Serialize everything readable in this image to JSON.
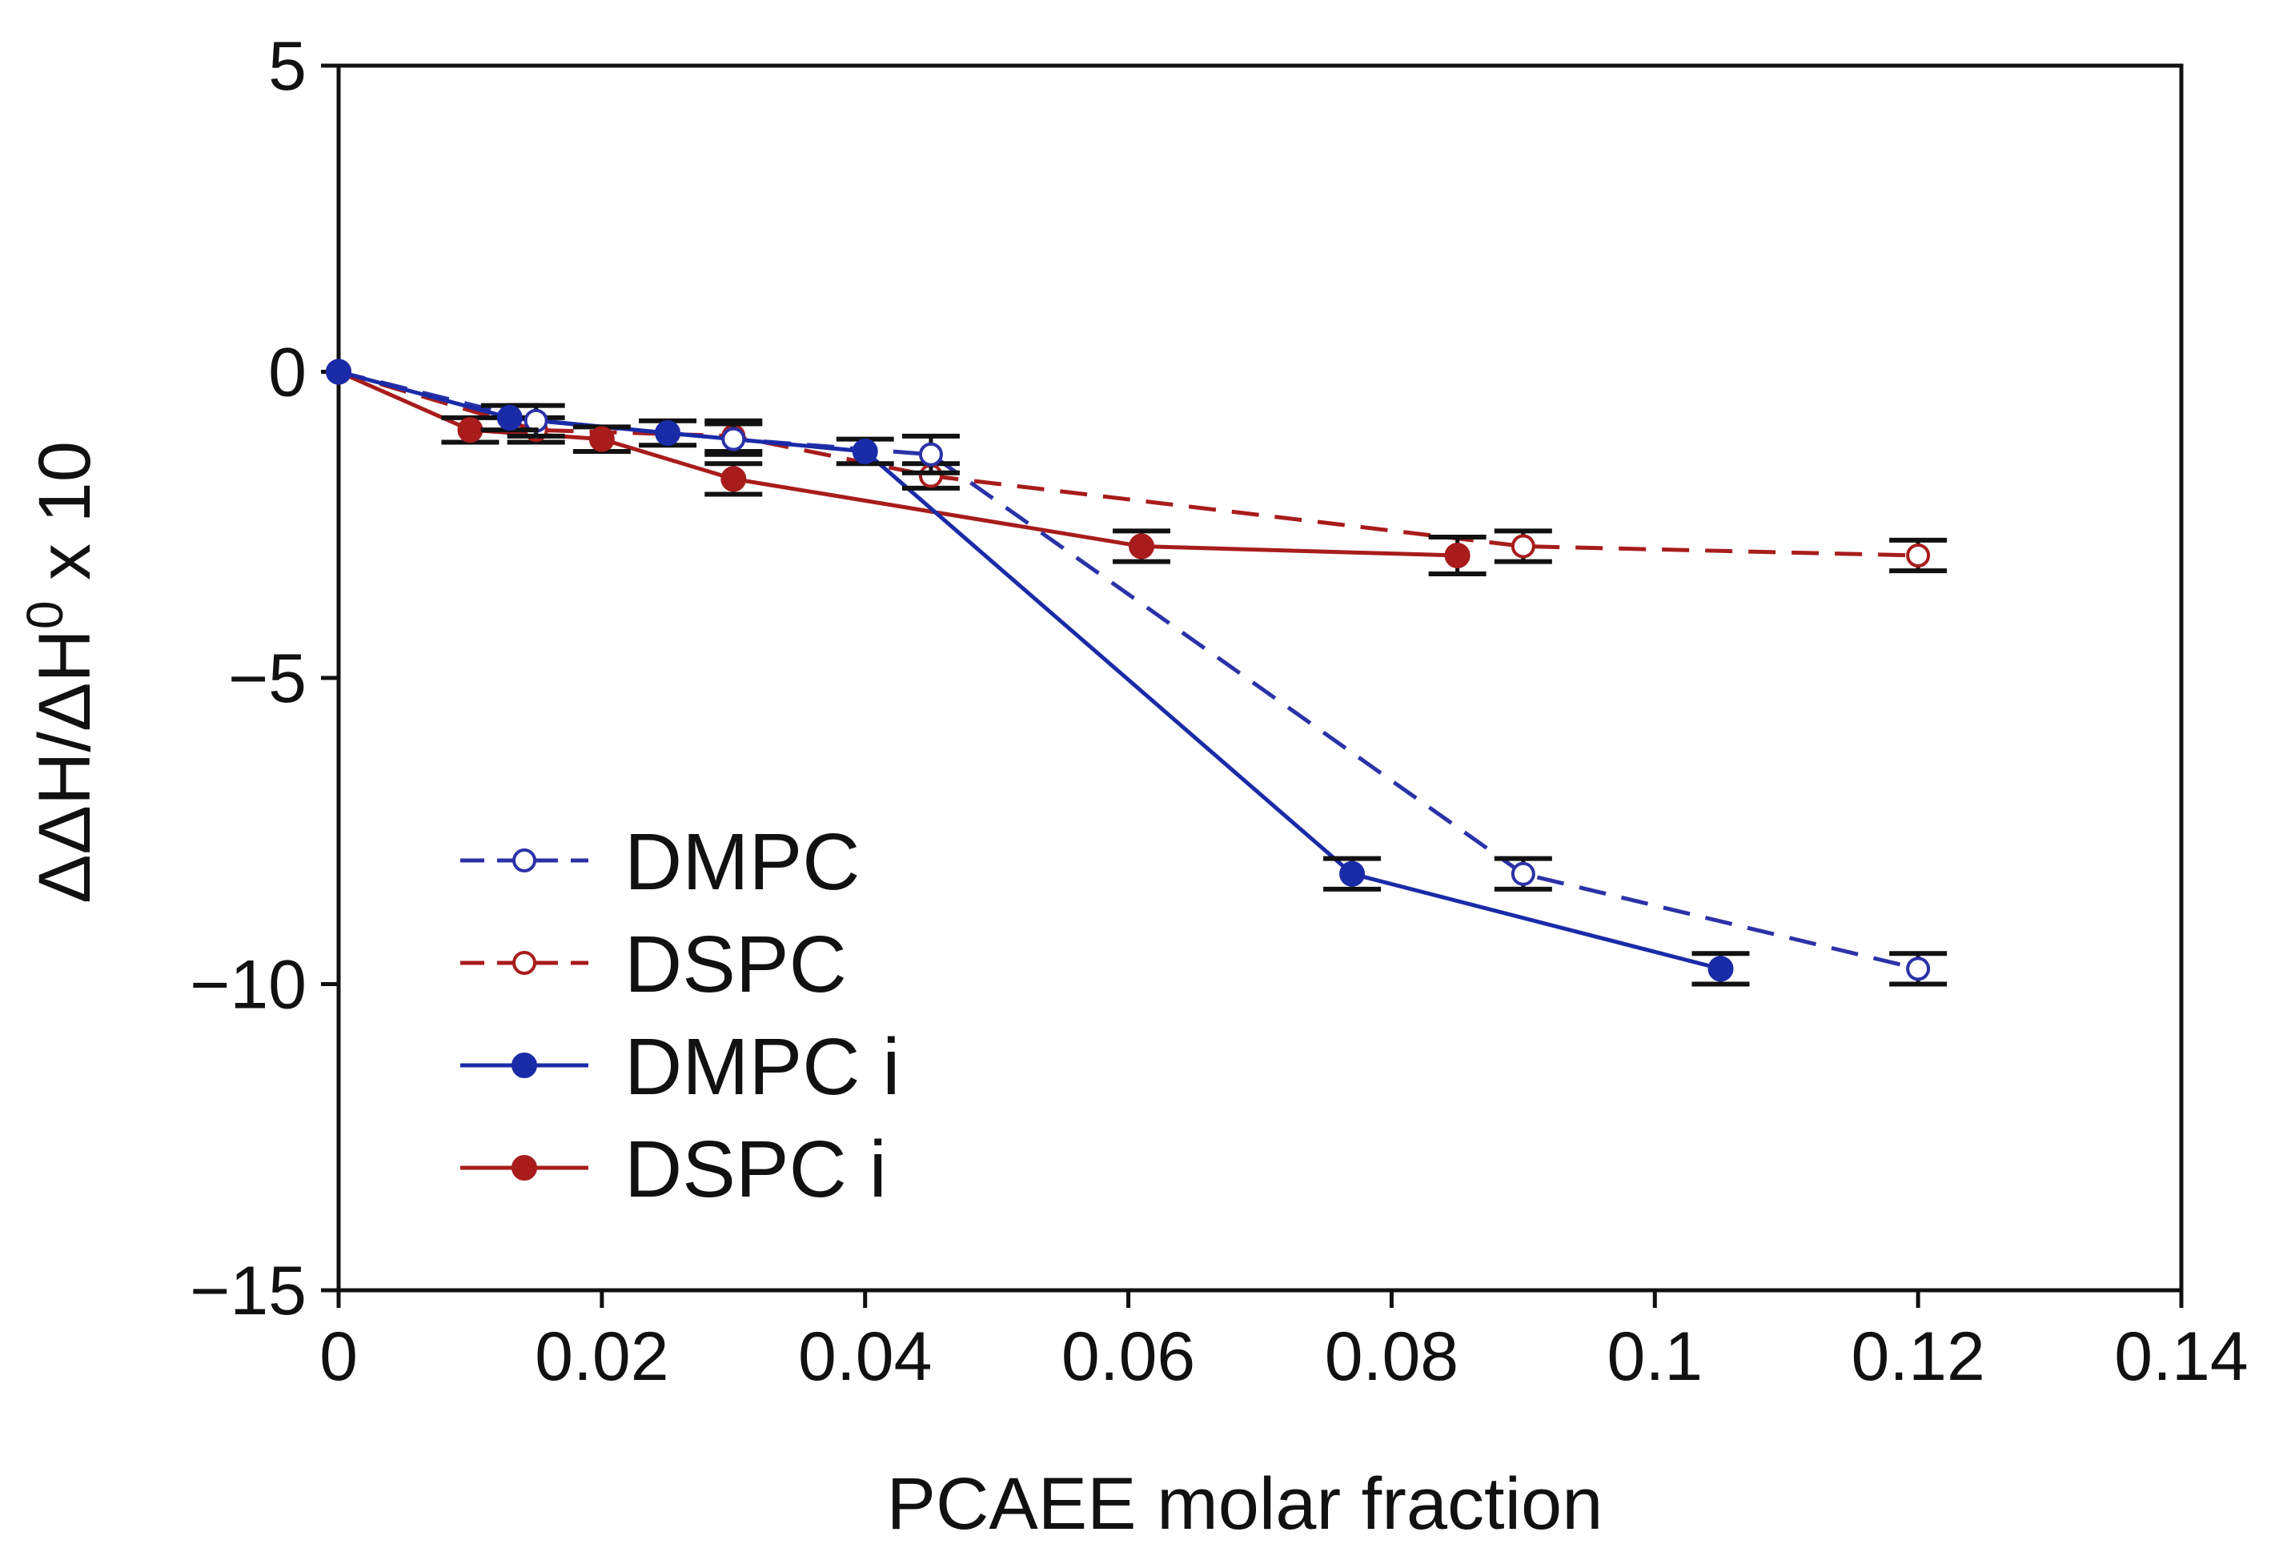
{
  "chart_data": {
    "type": "line",
    "title": "",
    "xlabel": "PCAEE molar fraction",
    "ylabel_parts": [
      "ΔΔH/ΔH",
      "0",
      " x 10"
    ],
    "xlim": [
      0,
      0.14
    ],
    "ylim": [
      -15,
      5
    ],
    "x_ticks": [
      0,
      0.02,
      0.04,
      0.06,
      0.08,
      0.1,
      0.12,
      0.14
    ],
    "x_tick_labels": [
      "0",
      "0.02",
      "0.04",
      "0.06",
      "0.08",
      "0.1",
      "0.12",
      "0.14"
    ],
    "y_ticks": [
      5,
      0,
      -5,
      -10,
      -15
    ],
    "y_tick_labels": [
      "5",
      "0",
      "−5",
      "−10",
      "−15"
    ],
    "grid": false,
    "legend_position": "lower-left",
    "series": [
      {
        "name": "DMPC",
        "color": "#2b32a8",
        "line_style": "dashed",
        "marker": "open-circle",
        "x": [
          0,
          0.015,
          0.03,
          0.045,
          0.09,
          0.12
        ],
        "y": [
          0,
          -0.8,
          -1.1,
          -1.35,
          -8.2,
          -9.75
        ],
        "err": [
          0,
          0.25,
          0.25,
          0.3,
          0.25,
          0.25
        ]
      },
      {
        "name": "DSPC",
        "color": "#a81c1c",
        "line_style": "dashed",
        "marker": "open-circle",
        "x": [
          0,
          0.015,
          0.03,
          0.045,
          0.09,
          0.12
        ],
        "y": [
          0,
          -0.95,
          -1.05,
          -1.7,
          -2.85,
          -3.0
        ],
        "err": [
          0,
          0.2,
          0.25,
          0.2,
          0.25,
          0.25
        ]
      },
      {
        "name": "DMPC i",
        "color": "#1a2ba8",
        "line_style": "solid",
        "marker": "filled-circle",
        "x": [
          0,
          0.013,
          0.025,
          0.04,
          0.077,
          0.105
        ],
        "y": [
          0,
          -0.75,
          -1.0,
          -1.3,
          -8.2,
          -9.75
        ],
        "err": [
          0,
          0.2,
          0.2,
          0.2,
          0.25,
          0.25
        ]
      },
      {
        "name": "DSPC i",
        "color": "#a81c1c",
        "line_style": "solid",
        "marker": "filled-circle",
        "x": [
          0,
          0.01,
          0.02,
          0.03,
          0.061,
          0.085
        ],
        "y": [
          0,
          -0.95,
          -1.1,
          -1.75,
          -2.85,
          -3.0
        ],
        "err": [
          0,
          0.2,
          0.2,
          0.25,
          0.25,
          0.3
        ]
      }
    ]
  }
}
